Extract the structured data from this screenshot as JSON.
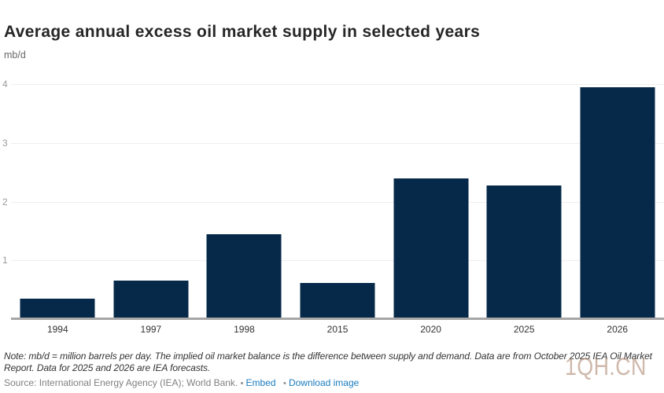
{
  "title": "Average annual excess oil market supply in selected years",
  "unit_label": "mb/d",
  "chart_data": {
    "type": "bar",
    "categories": [
      "1994",
      "1997",
      "1998",
      "2015",
      "2020",
      "2025",
      "2026"
    ],
    "values": [
      0.35,
      0.66,
      1.45,
      0.62,
      2.4,
      2.27,
      3.95
    ],
    "title": "Average annual excess oil market supply in selected years",
    "xlabel": "",
    "ylabel": "mb/d",
    "ylim": [
      0,
      4
    ],
    "yticks": [
      1,
      2,
      3,
      4
    ],
    "bar_color": "#06294a",
    "grid": true,
    "legend": false
  },
  "footer": {
    "note": "Note: mb/d = million barrels per day. The implied oil market balance is the difference between supply and demand. Data are from October 2025 IEA Oil Market Report. Data for 2025 and 2026 are IEA forecasts.",
    "source_text": "Source: International Energy Agency (IEA); World Bank.",
    "bullet": "•",
    "embed_label": "Embed",
    "download_label": "Download image"
  },
  "watermark": "1QH.CN"
}
